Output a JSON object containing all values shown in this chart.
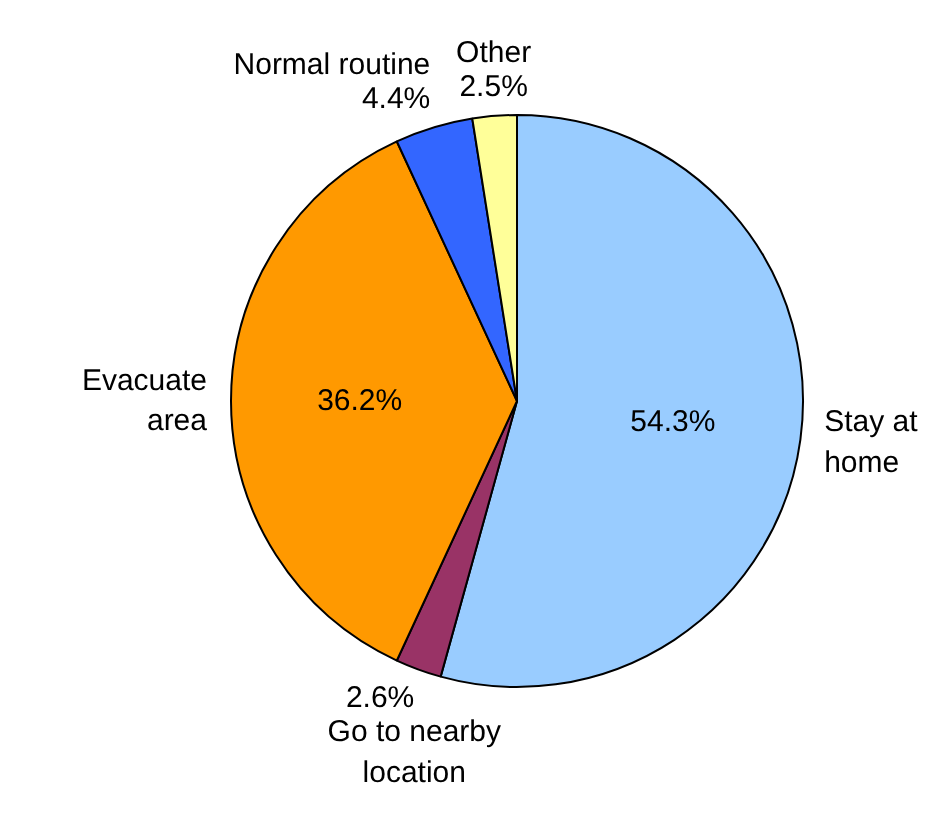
{
  "chart_data": {
    "type": "pie",
    "categories": [
      "Stay at\nhome",
      "Go to nearby\nlocation",
      "Evacuate\narea",
      "Normal routine",
      "Other"
    ],
    "values": [
      54.3,
      2.6,
      36.2,
      4.4,
      2.5
    ],
    "value_labels": [
      "54.3%",
      "2.6%",
      "36.2%",
      "4.4%",
      "2.5%"
    ],
    "colors": [
      "#99ccff",
      "#993366",
      "#ff9900",
      "#3366ff",
      "#ffff99"
    ],
    "legend": false
  }
}
